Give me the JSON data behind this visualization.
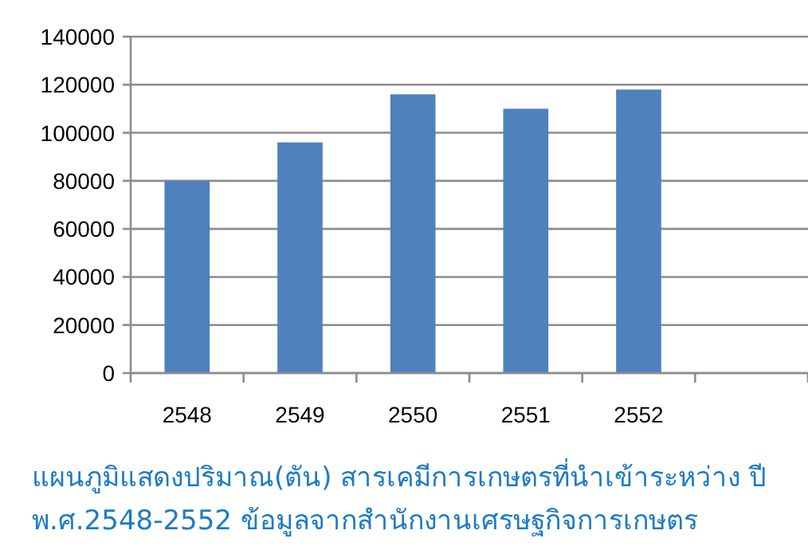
{
  "chart_data": {
    "type": "bar",
    "categories": [
      "2548",
      "2549",
      "2550",
      "2551",
      "2552",
      null
    ],
    "values": [
      80000,
      96000,
      116000,
      110000,
      118000,
      null
    ],
    "color": "#4f81bd",
    "ylim": [
      0,
      140000
    ],
    "yticks": [
      0,
      20000,
      40000,
      60000,
      80000,
      100000,
      120000,
      140000
    ],
    "grid": "y",
    "annotations": [
      "แผนภูมิแสดงปริมาณ(ตัน) สารเคมีการเกษตรที่นำเข้าระหว่าง ปี พ.ศ.2548-2552 ข้อมูลจากสำนักงานเศรษฐกิจการเกษตร"
    ]
  }
}
